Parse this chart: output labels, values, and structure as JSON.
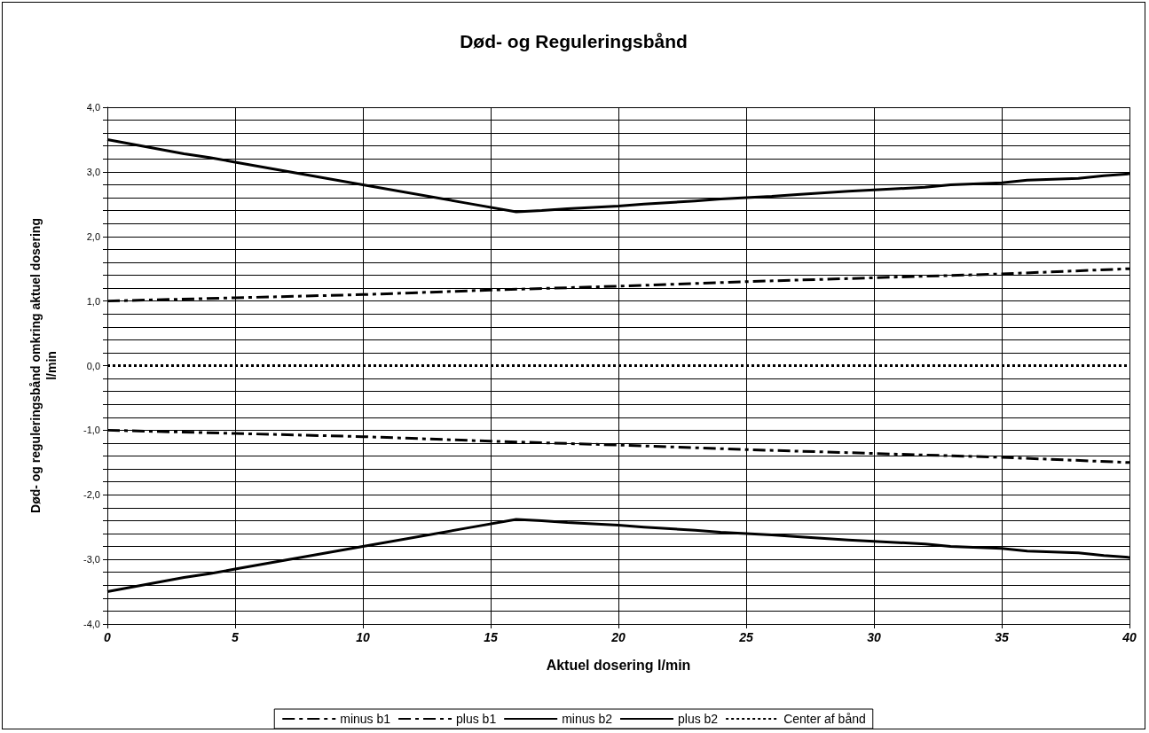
{
  "chart_data": {
    "type": "line",
    "title": "Død- og Reguleringsbånd",
    "xlabel": "Aktuel dosering l/min",
    "ylabel": "Død- og reguleringsbånd omkring aktuel dosering\nl/min",
    "series": [
      {
        "name": "minus b1",
        "color": "#000000",
        "line_style": "dashed",
        "x": [
          0,
          5,
          10,
          15,
          20,
          25,
          30,
          35,
          40
        ],
        "values": [
          -1.0,
          -1.05,
          -1.1,
          -1.17,
          -1.23,
          -1.3,
          -1.36,
          -1.42,
          -1.5
        ]
      },
      {
        "name": "plus b1",
        "color": "#000000",
        "line_style": "dashed",
        "x": [
          0,
          5,
          10,
          15,
          20,
          25,
          30,
          35,
          40
        ],
        "values": [
          1.0,
          1.05,
          1.1,
          1.17,
          1.23,
          1.3,
          1.36,
          1.42,
          1.5
        ]
      },
      {
        "name": "minus b2",
        "color": "#000000",
        "line_style": "solid",
        "x": [
          0,
          3,
          4,
          5,
          10,
          14,
          16,
          17,
          18,
          20,
          21,
          23,
          24,
          26,
          27,
          29,
          30,
          32,
          33,
          35,
          36,
          38,
          39,
          40
        ],
        "values": [
          -3.5,
          -3.28,
          -3.22,
          -3.15,
          -2.8,
          -2.52,
          -2.38,
          -2.4,
          -2.43,
          -2.47,
          -2.5,
          -2.55,
          -2.58,
          -2.62,
          -2.65,
          -2.7,
          -2.72,
          -2.76,
          -2.8,
          -2.83,
          -2.87,
          -2.9,
          -2.94,
          -2.97
        ]
      },
      {
        "name": "plus b2",
        "color": "#000000",
        "line_style": "solid",
        "x": [
          0,
          3,
          4,
          5,
          10,
          14,
          16,
          17,
          18,
          20,
          21,
          23,
          24,
          26,
          27,
          29,
          30,
          32,
          33,
          35,
          36,
          38,
          39,
          40
        ],
        "values": [
          3.5,
          3.28,
          3.22,
          3.15,
          2.8,
          2.52,
          2.38,
          2.4,
          2.43,
          2.47,
          2.5,
          2.55,
          2.58,
          2.62,
          2.65,
          2.7,
          2.72,
          2.76,
          2.8,
          2.83,
          2.87,
          2.9,
          2.94,
          2.97
        ]
      },
      {
        "name": "Center af bånd",
        "color": "#000000",
        "line_style": "dotted",
        "x": [
          0,
          40
        ],
        "values": [
          0,
          0
        ]
      }
    ],
    "xlim": [
      0,
      40
    ],
    "xticks": [
      0,
      5,
      10,
      15,
      20,
      25,
      30,
      35,
      40
    ],
    "ylim": [
      -4,
      4
    ],
    "yticks": [
      {
        "value": -4,
        "label": "-4,0"
      },
      {
        "value": -3.8,
        "label": null
      },
      {
        "value": -3.6,
        "label": null
      },
      {
        "value": -3.4,
        "label": null
      },
      {
        "value": -3.2,
        "label": null
      },
      {
        "value": -3,
        "label": "-3,0"
      },
      {
        "value": -2.8,
        "label": null
      },
      {
        "value": -2.6,
        "label": null
      },
      {
        "value": -2.4,
        "label": null
      },
      {
        "value": -2.2,
        "label": null
      },
      {
        "value": -2,
        "label": "-2,0"
      },
      {
        "value": -1.8,
        "label": null
      },
      {
        "value": -1.6,
        "label": null
      },
      {
        "value": -1.4,
        "label": null
      },
      {
        "value": -1.2,
        "label": null
      },
      {
        "value": -1,
        "label": "-1,0"
      },
      {
        "value": -0.8,
        "label": null
      },
      {
        "value": -0.6,
        "label": null
      },
      {
        "value": -0.4,
        "label": null
      },
      {
        "value": -0.2,
        "label": null
      },
      {
        "value": 0,
        "label": "0,0"
      },
      {
        "value": 0.2,
        "label": null
      },
      {
        "value": 0.4,
        "label": null
      },
      {
        "value": 0.6,
        "label": null
      },
      {
        "value": 0.8,
        "label": null
      },
      {
        "value": 1,
        "label": "1,0"
      },
      {
        "value": 1.2,
        "label": null
      },
      {
        "value": 1.4,
        "label": null
      },
      {
        "value": 1.6,
        "label": null
      },
      {
        "value": 1.8,
        "label": null
      },
      {
        "value": 2,
        "label": "2,0"
      },
      {
        "value": 2.2,
        "label": null
      },
      {
        "value": 2.4,
        "label": null
      },
      {
        "value": 2.6,
        "label": null
      },
      {
        "value": 2.8,
        "label": null
      },
      {
        "value": 3,
        "label": "3,0"
      },
      {
        "value": 3.2,
        "label": null
      },
      {
        "value": 3.4,
        "label": null
      },
      {
        "value": 3.6,
        "label": null
      },
      {
        "value": 3.8,
        "label": null
      },
      {
        "value": 4,
        "label": "4,0"
      }
    ],
    "grid": true,
    "legend": "bottom",
    "marker": "none"
  }
}
